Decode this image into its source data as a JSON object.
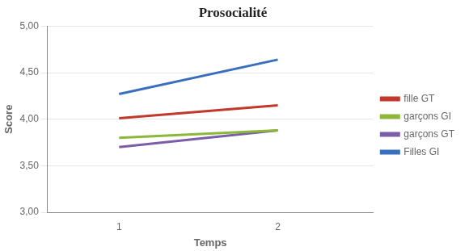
{
  "chart_data": {
    "type": "line",
    "title": "Prosocialité",
    "xlabel": "Temps",
    "ylabel": "Score",
    "x": [
      1,
      2
    ],
    "series": [
      {
        "name": "fille GT",
        "color": "#c0392b",
        "values": [
          4.01,
          4.15
        ]
      },
      {
        "name": "garçons GI",
        "color": "#8db73a",
        "values": [
          3.8,
          3.88
        ]
      },
      {
        "name": "garçons GT",
        "color": "#7b5ea7",
        "values": [
          3.7,
          3.88
        ]
      },
      {
        "name": "Filles GI",
        "color": "#3a6fbd",
        "values": [
          4.27,
          4.64
        ]
      }
    ],
    "xlim": [
      0.55,
      2.6
    ],
    "xticks": [
      1,
      2
    ],
    "ylim": [
      3.0,
      5.0
    ],
    "yticks": [
      {
        "value": 3.0,
        "label": "3,00"
      },
      {
        "value": 3.5,
        "label": "3,50"
      },
      {
        "value": 4.0,
        "label": "4,00"
      },
      {
        "value": 4.5,
        "label": "4,50"
      },
      {
        "value": 5.0,
        "label": "5,00"
      }
    ],
    "grid": "y",
    "legend": "right"
  }
}
